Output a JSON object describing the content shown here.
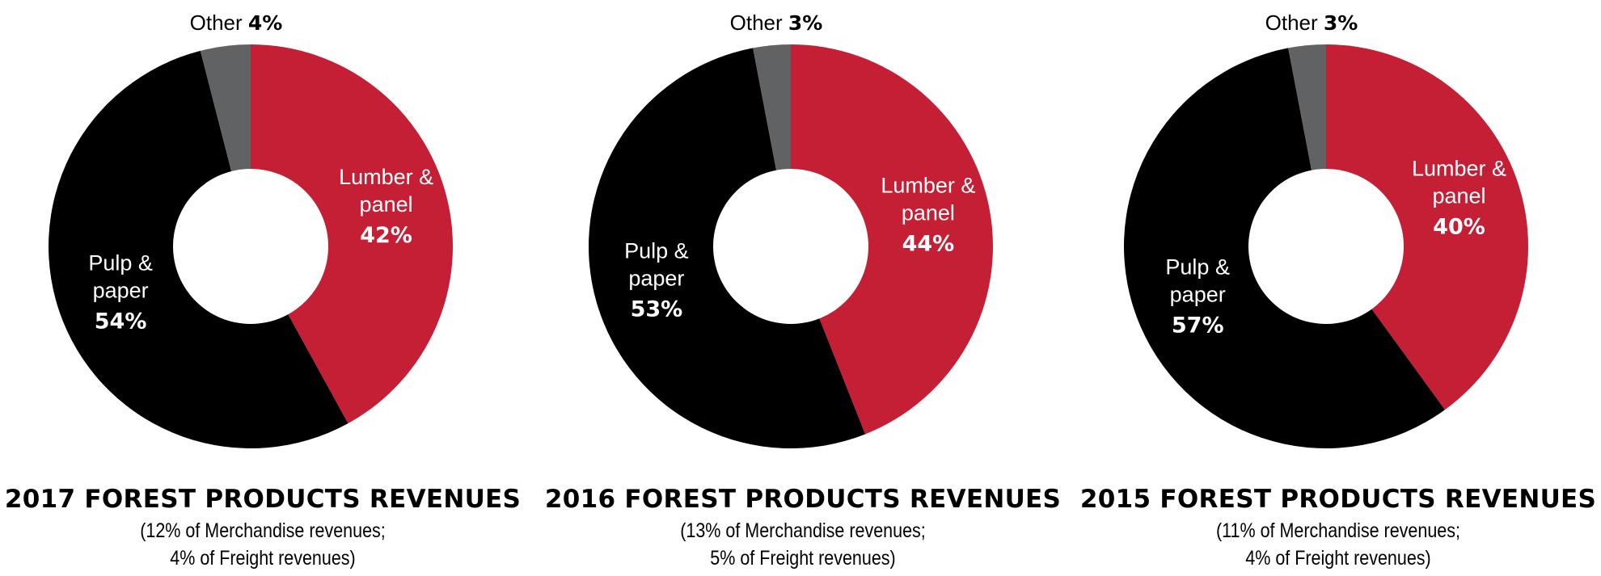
{
  "chart_data": [
    {
      "type": "pie",
      "title": "2017 FOREST PRODUCTS REVENUES",
      "subtitle_lines": [
        "(12% of Merchandise revenues;",
        "4% of Freight revenues)"
      ],
      "slices": [
        {
          "label": "Lumber & panel",
          "label_lines": [
            "Lumber &",
            "panel"
          ],
          "value": 42,
          "value_label": "42%",
          "color": "#c41f35"
        },
        {
          "label": "Pulp & paper",
          "label_lines": [
            "Pulp &",
            "paper"
          ],
          "value": 54,
          "value_label": "54%",
          "color": "#000000"
        },
        {
          "label": "Other",
          "label_lines": [
            "Other"
          ],
          "value": 4,
          "value_label": "4%",
          "color": "#616264"
        }
      ]
    },
    {
      "type": "pie",
      "title": "2016 FOREST PRODUCTS REVENUES",
      "subtitle_lines": [
        "(13% of Merchandise revenues;",
        "5% of Freight revenues)"
      ],
      "slices": [
        {
          "label": "Lumber & panel",
          "label_lines": [
            "Lumber &",
            "panel"
          ],
          "value": 44,
          "value_label": "44%",
          "color": "#c41f35"
        },
        {
          "label": "Pulp & paper",
          "label_lines": [
            "Pulp &",
            "paper"
          ],
          "value": 53,
          "value_label": "53%",
          "color": "#000000"
        },
        {
          "label": "Other",
          "label_lines": [
            "Other"
          ],
          "value": 3,
          "value_label": "3%",
          "color": "#616264"
        }
      ]
    },
    {
      "type": "pie",
      "title": "2015 FOREST PRODUCTS REVENUES",
      "subtitle_lines": [
        "(11% of Merchandise revenues;",
        "4% of Freight revenues)"
      ],
      "slices": [
        {
          "label": "Lumber & panel",
          "label_lines": [
            "Lumber &",
            "panel"
          ],
          "value": 40,
          "value_label": "40%",
          "color": "#c41f35"
        },
        {
          "label": "Pulp & paper",
          "label_lines": [
            "Pulp &",
            "paper"
          ],
          "value": 57,
          "value_label": "57%",
          "color": "#000000"
        },
        {
          "label": "Other",
          "label_lines": [
            "Other"
          ],
          "value": 3,
          "value_label": "3%",
          "color": "#616264"
        }
      ]
    }
  ]
}
